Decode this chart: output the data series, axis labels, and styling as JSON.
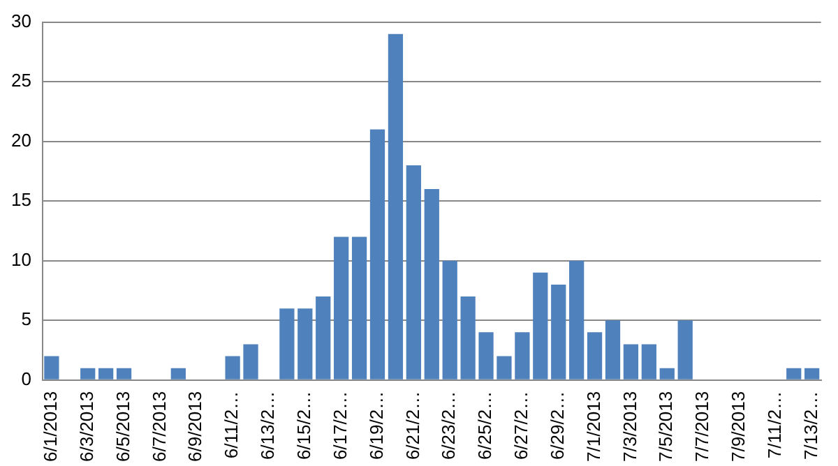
{
  "chart_data": {
    "type": "bar",
    "categories": [
      "6/1/2013",
      null,
      "6/3/2013",
      null,
      "6/5/2013",
      null,
      "6/7/2013",
      null,
      "6/9/2013",
      null,
      "6/11/2…",
      null,
      "6/13/2…",
      null,
      "6/15/2…",
      null,
      "6/17/2…",
      null,
      "6/19/2…",
      null,
      "6/21/2…",
      null,
      "6/23/2…",
      null,
      "6/25/2…",
      null,
      "6/27/2…",
      null,
      "6/29/2…",
      null,
      "7/1/2013",
      null,
      "7/3/2013",
      null,
      "7/5/2013",
      null,
      "7/7/2013",
      null,
      "7/9/2013",
      null,
      "7/11/2…",
      null,
      "7/13/2…"
    ],
    "values": [
      2,
      0,
      1,
      1,
      1,
      0,
      0,
      1,
      0,
      0,
      2,
      3,
      0,
      6,
      6,
      7,
      12,
      12,
      21,
      29,
      18,
      16,
      10,
      7,
      4,
      2,
      4,
      9,
      8,
      10,
      4,
      5,
      3,
      3,
      1,
      5,
      0,
      0,
      0,
      0,
      0,
      1,
      1
    ],
    "color": "#4f81bd",
    "ylim": [
      0,
      30
    ],
    "yticks": [
      0,
      5,
      10,
      15,
      20,
      25,
      30
    ],
    "grid": "y"
  }
}
